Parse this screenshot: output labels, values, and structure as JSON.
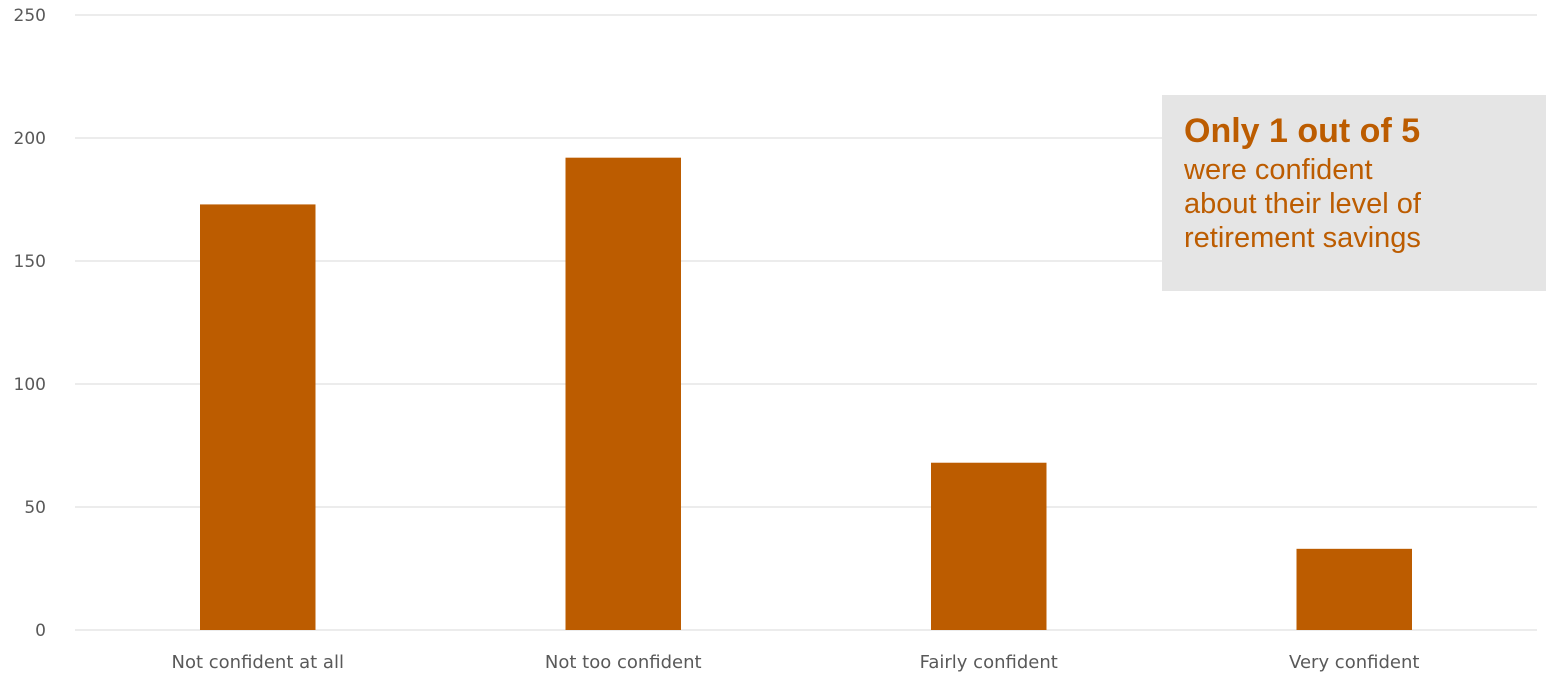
{
  "chart_data": {
    "type": "bar",
    "categories": [
      "Not confident at all",
      "Not too confident",
      "Fairly confident",
      "Very confident"
    ],
    "series": [
      {
        "values": [
          173,
          192,
          68,
          33
        ]
      }
    ],
    "ylim": [
      0,
      250
    ],
    "yticks": [
      0,
      50,
      100,
      150,
      200,
      250
    ],
    "grid": true,
    "bar_color": "#bc5c00"
  },
  "callout": {
    "headline": "Only 1 out of 5",
    "body": "were confident\nabout their level of\nretirement savings",
    "text_color": "#bc5c00",
    "background": "#e5e5e5"
  }
}
